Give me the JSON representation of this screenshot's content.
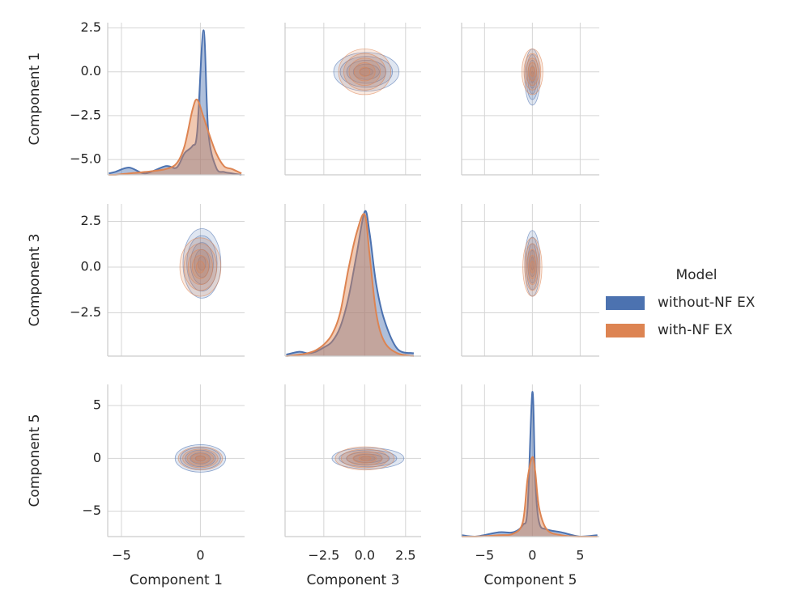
{
  "chart_data": {
    "type": "pairplot",
    "legend_title": "Model",
    "grid": true,
    "axes": [
      {
        "label": "Component 1",
        "lim": [
          -5.87,
          2.8
        ],
        "xticks": [
          {
            "value": -5,
            "label": "−5"
          },
          0
        ],
        "yticks": [
          {
            "value": -5,
            "label": "−5.0"
          },
          {
            "value": -2.5,
            "label": "−2.5"
          },
          {
            "value": 0,
            "label": "0.0"
          },
          2.5
        ],
        "kde_x": [
          -5.8,
          -5.4,
          -4.5,
          -3.5,
          -2.2,
          -1.5,
          -1,
          -0.5,
          -0.2,
          0.2,
          0.5,
          1,
          1.5,
          2,
          2.6
        ]
      },
      {
        "label": "Component 3",
        "lim": [
          -4.87,
          3.45
        ],
        "xticks": [
          {
            "value": -2.5,
            "label": "−2.5"
          },
          {
            "value": 0,
            "label": "0.0"
          },
          2.5
        ],
        "yticks": [
          {
            "value": -2.5,
            "label": "−2.5"
          },
          {
            "value": 0,
            "label": "0.0"
          },
          2.5
        ],
        "kde_x": [
          -4.8,
          -4,
          -3.5,
          -3,
          -2.5,
          -2,
          -1.5,
          -1,
          -0.5,
          0,
          0.3,
          0.7,
          1.2,
          2,
          3
        ]
      },
      {
        "label": "Component 5",
        "lim": [
          -7.4,
          7.0
        ],
        "xticks": [
          {
            "value": -5,
            "label": "−5"
          },
          0,
          5
        ],
        "yticks": [
          {
            "value": -5,
            "label": "−5"
          },
          0,
          5
        ],
        "kde_x": [
          -7.4,
          -6,
          -3.5,
          -2,
          -1,
          -0.5,
          0,
          0.3,
          0.7,
          1.5,
          3,
          5,
          6.8
        ]
      }
    ],
    "series": [
      {
        "name": "without-NF EX",
        "color": "#4c72b0",
        "kde": [
          [
            0.01,
            0.02,
            0.05,
            0.01,
            0.06,
            0.05,
            0.15,
            0.2,
            0.3,
            1.0,
            0.3,
            0.05,
            0.02,
            0.01,
            0
          ],
          [
            0.01,
            0.03,
            0.02,
            0.03,
            0.06,
            0.1,
            0.2,
            0.4,
            0.7,
            1.0,
            0.85,
            0.5,
            0.25,
            0.05,
            0.02
          ],
          [
            0.01,
            0,
            0.03,
            0.03,
            0.08,
            0.2,
            1.0,
            0.4,
            0.1,
            0.05,
            0.03,
            0,
            0.01
          ]
        ],
        "joint": [
          [
            null,
            [
              0.1,
              0,
              2.0,
              1.1
            ],
            [
              0,
              -0.3,
              0.8,
              1.6
            ]
          ],
          [
            [
              0.1,
              0.2,
              1.2,
              1.9
            ],
            null,
            [
              0,
              0.2,
              0.8,
              1.8
            ]
          ],
          [
            [
              0,
              0,
              1.6,
              1.3
            ],
            [
              0.2,
              0,
              2.2,
              1.0
            ],
            null
          ]
        ]
      },
      {
        "name": "with-NF EX",
        "color": "#dd8452",
        "kde": [
          [
            0,
            0,
            0.01,
            0.02,
            0.04,
            0.08,
            0.2,
            0.45,
            0.52,
            0.4,
            0.3,
            0.15,
            0.06,
            0.04,
            0.01
          ],
          [
            0,
            0.01,
            0.02,
            0.04,
            0.08,
            0.15,
            0.3,
            0.6,
            0.85,
            0.98,
            0.7,
            0.3,
            0.1,
            0.02,
            0
          ],
          [
            0,
            0,
            0.01,
            0.02,
            0.1,
            0.4,
            0.55,
            0.45,
            0.2,
            0.05,
            0.01,
            0,
            0
          ]
        ],
        "joint": [
          [
            null,
            [
              0,
              0,
              1.6,
              1.3
            ],
            [
              0,
              0,
              1.1,
              1.3
            ]
          ],
          [
            [
              0,
              0,
              1.3,
              1.6
            ],
            null,
            [
              0,
              0,
              1.0,
              1.6
            ]
          ],
          [
            [
              0,
              0,
              1.4,
              1.1
            ],
            [
              0,
              0,
              1.8,
              1.1
            ],
            null
          ]
        ]
      }
    ]
  }
}
